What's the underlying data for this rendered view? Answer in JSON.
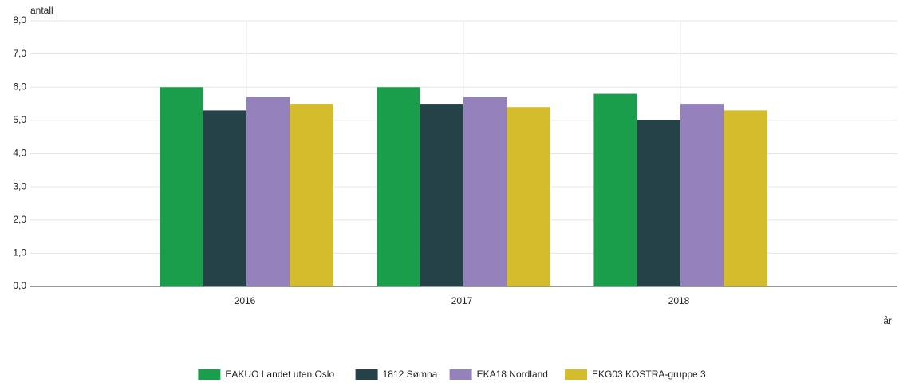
{
  "chart_data": {
    "type": "bar",
    "y_axis_label": "antall",
    "x_axis_label": "år",
    "categories": [
      "2016",
      "2017",
      "2018"
    ],
    "series": [
      {
        "name": "EAKUO Landet uten Oslo",
        "color": "#1a9e4b",
        "values": [
          6.0,
          6.0,
          5.8
        ]
      },
      {
        "name": "1812 Sømna",
        "color": "#264249",
        "values": [
          5.3,
          5.5,
          5.0
        ]
      },
      {
        "name": "EKA18 Nordland",
        "color": "#9582bd",
        "values": [
          5.7,
          5.7,
          5.5
        ]
      },
      {
        "name": "EKG03 KOSTRA-gruppe 3",
        "color": "#d4bc2c",
        "values": [
          5.5,
          5.4,
          5.3
        ]
      }
    ],
    "ylim": [
      0,
      8
    ],
    "yticks": [
      {
        "value": 0,
        "label": "0,0"
      },
      {
        "value": 1,
        "label": "1,0"
      },
      {
        "value": 2,
        "label": "2,0"
      },
      {
        "value": 3,
        "label": "3,0"
      },
      {
        "value": 4,
        "label": "4,0"
      },
      {
        "value": 5,
        "label": "5,0"
      },
      {
        "value": 6,
        "label": "6,0"
      },
      {
        "value": 7,
        "label": "7,0"
      },
      {
        "value": 8,
        "label": "8,0"
      }
    ],
    "grid": true,
    "legend": "bottom"
  }
}
